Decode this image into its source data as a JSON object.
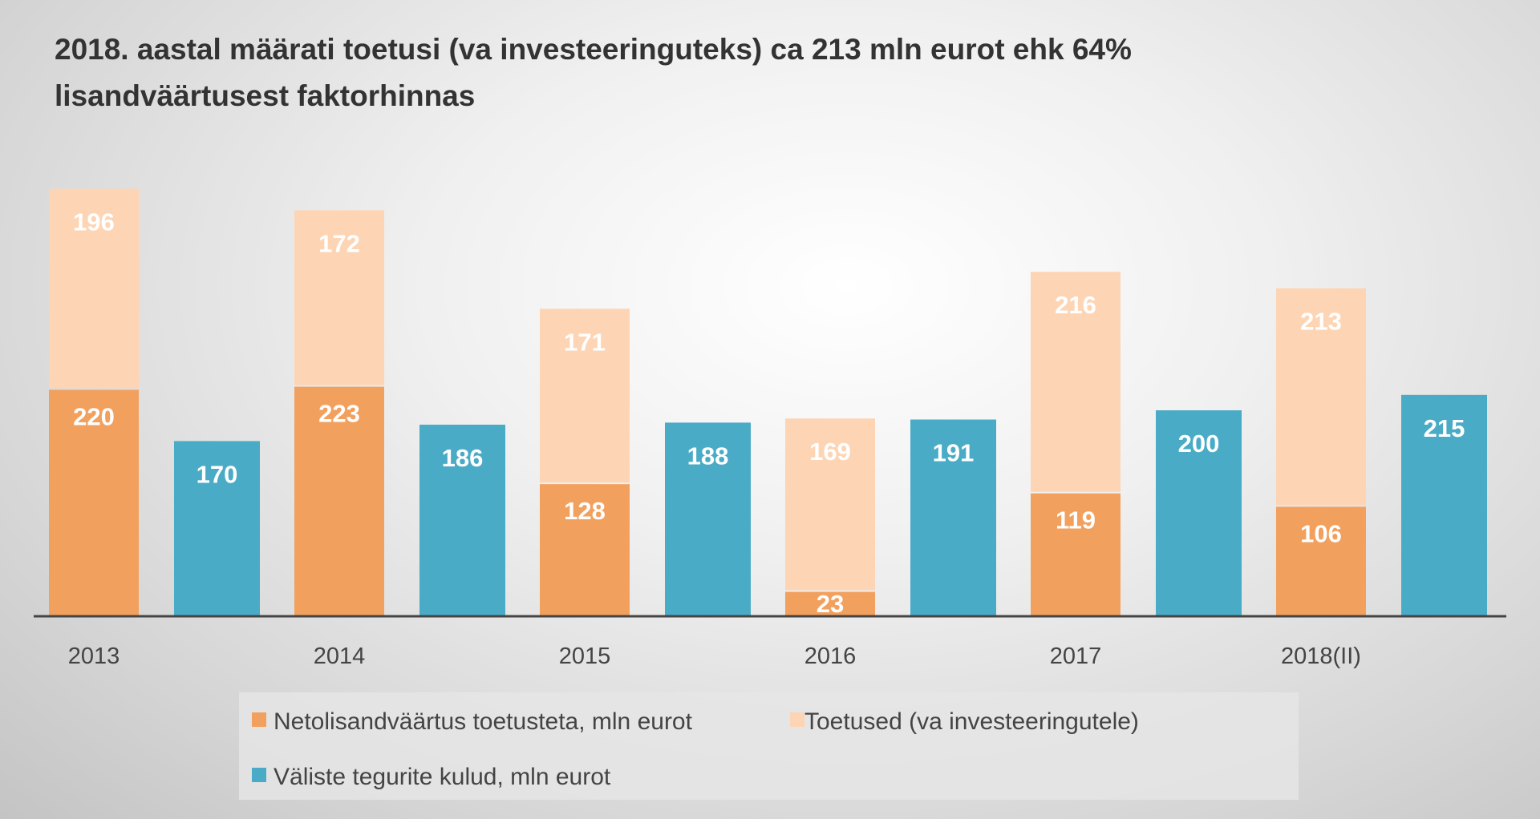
{
  "chart_data": {
    "type": "bar",
    "title_lines": [
      "2018. aastal määrati toetusi (va investeeringuteks) ca 213 mln eurot ehk 64%",
      "lisandväärtusest faktorhinnas"
    ],
    "categories": [
      "2013",
      "2014",
      "2015",
      "2016",
      "2017",
      "2018(II)"
    ],
    "series": [
      {
        "name": "Netolisandväärtus toetusteta, mln eurot",
        "stack": "a",
        "color": "#F2A05E",
        "values": [
          220,
          223,
          128,
          23,
          119,
          106
        ]
      },
      {
        "name": "Toetused (va investeeringutele)",
        "stack": "a",
        "color": "#FDD5B5",
        "values": [
          196,
          172,
          171,
          169,
          216,
          213
        ]
      },
      {
        "name": "Väliste tegurite kulud, mln eurot",
        "stack": "b",
        "color": "#4AABC6",
        "values": [
          170,
          186,
          188,
          191,
          200,
          215
        ]
      }
    ],
    "xlabel": "",
    "ylabel": "",
    "ylim": [
      0,
      450
    ],
    "grid": false,
    "legend": "bottom"
  }
}
